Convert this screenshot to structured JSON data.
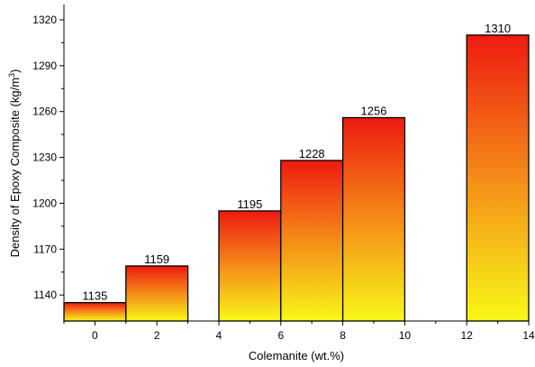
{
  "chart_data": {
    "type": "bar",
    "title": "",
    "xlabel": "Colemanite (wt.%)",
    "ylabel_main": "Density of Epoxy Composite (kg/m",
    "ylabel_sup": "3",
    "ylabel_close": ")",
    "xlim": [
      -1,
      14
    ],
    "ylim": [
      1123,
      1330
    ],
    "x_ticks": [
      "0",
      "2",
      "4",
      "6",
      "8",
      "10",
      "12",
      "14"
    ],
    "y_ticks": [
      "1140",
      "1170",
      "1200",
      "1230",
      "1260",
      "1290",
      "1320"
    ],
    "bars": [
      {
        "x_start": -1,
        "x_end": 1,
        "value": 1135,
        "label": "1135"
      },
      {
        "x_start": 1,
        "x_end": 3,
        "value": 1159,
        "label": "1159"
      },
      {
        "x_start": 4,
        "x_end": 6,
        "value": 1195,
        "label": "1195"
      },
      {
        "x_start": 6,
        "x_end": 8,
        "value": 1228,
        "label": "1228"
      },
      {
        "x_start": 8,
        "x_end": 10,
        "value": 1256,
        "label": "1256"
      },
      {
        "x_start": 12,
        "x_end": 14,
        "value": 1310,
        "label": "1310"
      }
    ],
    "gradient": {
      "top": "#ee1a10",
      "mid": "#f58c18",
      "bottom": "#f8f818"
    },
    "grid": false,
    "legend": "none"
  }
}
